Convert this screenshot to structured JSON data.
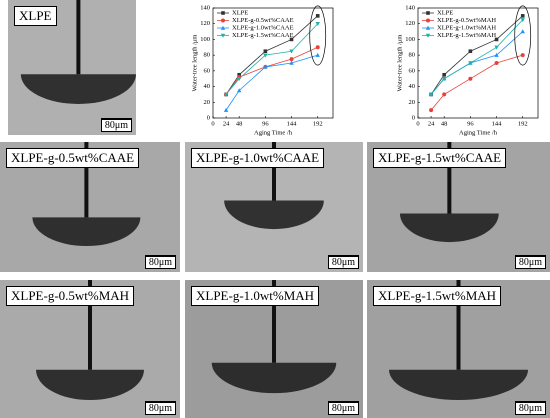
{
  "micrographs": [
    {
      "label": "XLPE",
      "scale": "80μm"
    },
    {
      "label": "XLPE-g-0.5wt%CAAE",
      "scale": "80μm"
    },
    {
      "label": "XLPE-g-1.0wt%CAAE",
      "scale": "80μm"
    },
    {
      "label": "XLPE-g-1.5wt%CAAE",
      "scale": "80μm"
    },
    {
      "label": "XLPE-g-0.5wt%MAH",
      "scale": "80μm"
    },
    {
      "label": "XLPE-g-1.0wt%MAH",
      "scale": "80μm"
    },
    {
      "label": "XLPE-g-1.5wt%MAH",
      "scale": "80μm"
    }
  ],
  "chart_data": [
    {
      "type": "line",
      "x_label": "Aging Time /h",
      "y_label": "Water-tree length /μm",
      "x": [
        24,
        48,
        96,
        144,
        192
      ],
      "xlim": [
        0,
        220
      ],
      "xticks": [
        0,
        24,
        48,
        96,
        144,
        192
      ],
      "ylim": [
        0,
        140
      ],
      "yticks": [
        0,
        20,
        40,
        60,
        80,
        100,
        120,
        140
      ],
      "series": [
        {
          "name": "XLPE",
          "color": "#333333",
          "values": [
            30,
            55,
            85,
            100,
            130
          ]
        },
        {
          "name": "XLPE-g-0.5wt%CAAE",
          "color": "#e8413a",
          "values": [
            30,
            52,
            65,
            75,
            90
          ]
        },
        {
          "name": "XLPE-g-1.0wt%CAAE",
          "color": "#1e90ff",
          "values": [
            10,
            35,
            65,
            70,
            80
          ]
        },
        {
          "name": "XLPE-g-1.5wt%CAAE",
          "color": "#20b2aa",
          "values": [
            30,
            50,
            80,
            85,
            120
          ]
        }
      ]
    },
    {
      "type": "line",
      "x_label": "Aging Time /h",
      "y_label": "Water-tree length /μm",
      "x": [
        24,
        48,
        96,
        144,
        192
      ],
      "xlim": [
        0,
        220
      ],
      "xticks": [
        0,
        24,
        48,
        96,
        144,
        192
      ],
      "ylim": [
        0,
        140
      ],
      "yticks": [
        0,
        20,
        40,
        60,
        80,
        100,
        120,
        140
      ],
      "series": [
        {
          "name": "XLPE",
          "color": "#333333",
          "values": [
            30,
            55,
            85,
            100,
            130
          ]
        },
        {
          "name": "XLPE-g-0.5wt%MAH",
          "color": "#e8413a",
          "values": [
            10,
            30,
            50,
            70,
            80
          ]
        },
        {
          "name": "XLPE-g-1.0wt%MAH",
          "color": "#1e90ff",
          "values": [
            30,
            50,
            70,
            80,
            110
          ]
        },
        {
          "name": "XLPE-g-1.5wt%MAH",
          "color": "#20b2aa",
          "values": [
            30,
            50,
            70,
            90,
            125
          ]
        }
      ]
    }
  ]
}
